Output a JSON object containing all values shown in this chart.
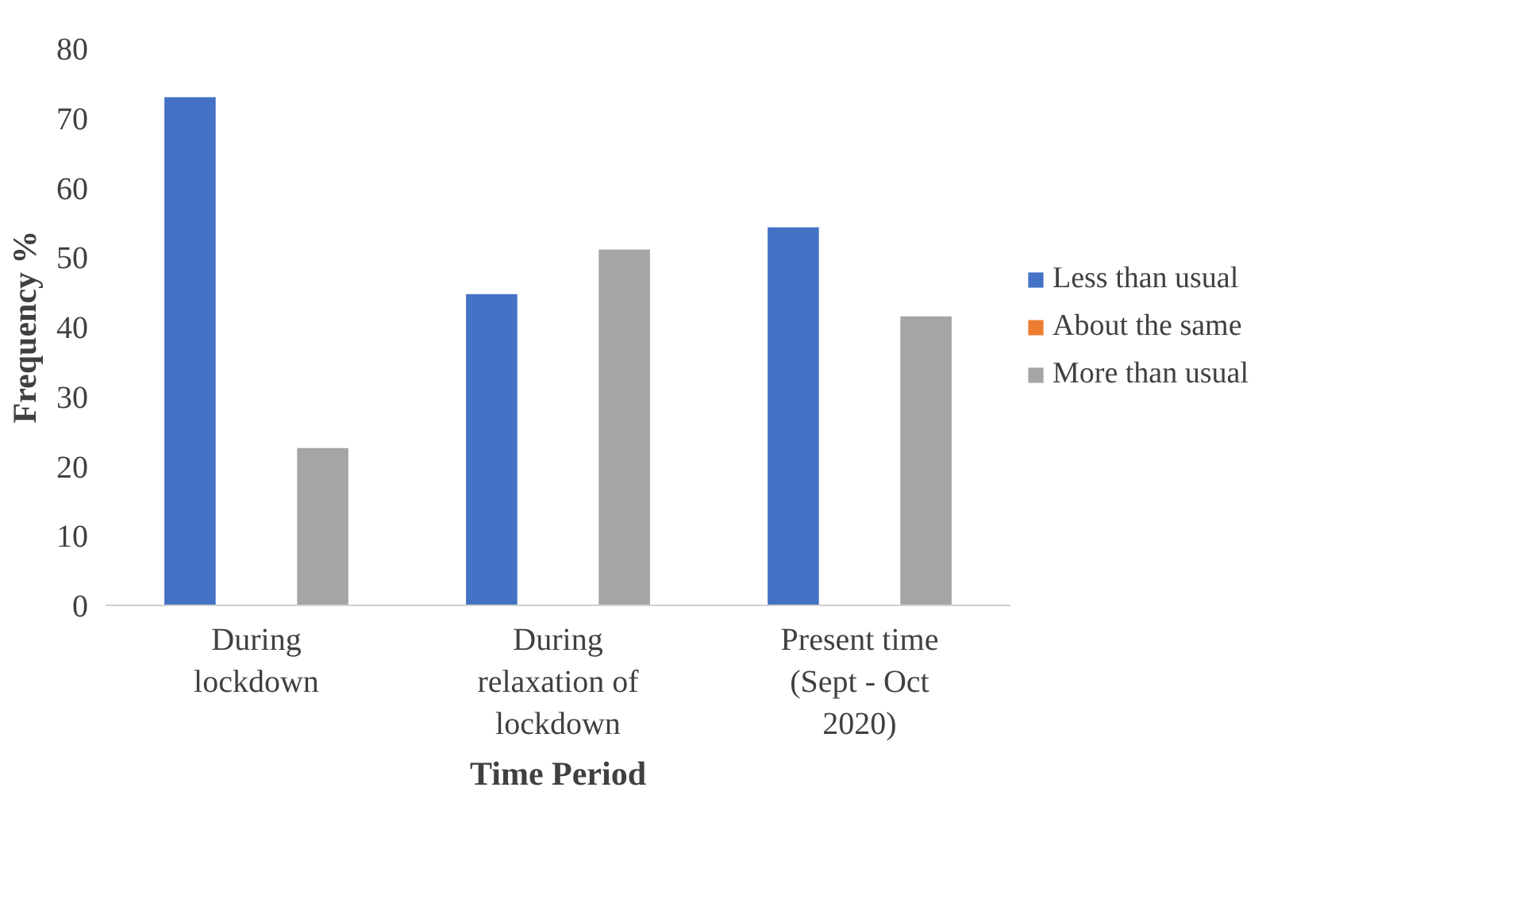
{
  "chart_data": {
    "type": "bar",
    "xlabel": "Time Period",
    "ylabel": "Frequency %",
    "categories": [
      "During lockdown",
      "During relaxation of lockdown",
      "Present time (Sept - Oct 2020)"
    ],
    "series": [
      {
        "name": "Less than usual",
        "color": "#4472c4",
        "values": [
          73,
          44.7,
          54.3
        ]
      },
      {
        "name": "About the same",
        "color": "#ed7d31",
        "values": [
          0,
          0,
          0
        ]
      },
      {
        "name": "More than usual",
        "color": "#a5a5a5",
        "values": [
          22.6,
          51.1,
          41.5
        ]
      }
    ],
    "ylim": [
      0,
      80
    ],
    "yticks": [
      0,
      10,
      20,
      30,
      40,
      50,
      60,
      70,
      80
    ],
    "grid": false,
    "legend": "right"
  }
}
